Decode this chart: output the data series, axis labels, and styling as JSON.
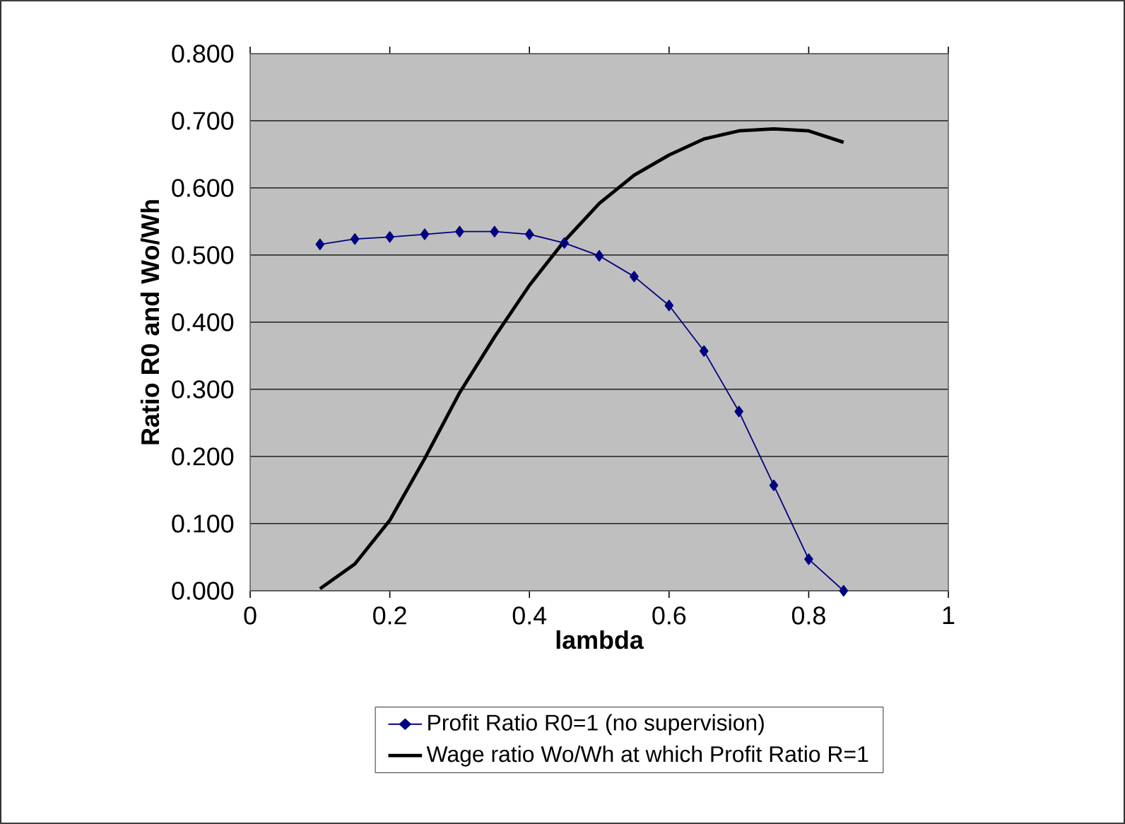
{
  "chart_data": {
    "type": "line",
    "xlabel": "lambda",
    "ylabel": "Ratio R0 and Wo/Wh",
    "x": [
      0.1,
      0.15,
      0.2,
      0.25,
      0.3,
      0.35,
      0.4,
      0.45,
      0.5,
      0.55,
      0.6,
      0.65,
      0.7,
      0.75,
      0.8,
      0.85
    ],
    "series": [
      {
        "name": "Profit Ratio R0=1 (no supervision)",
        "color": "#000080",
        "marker": "diamond",
        "values": [
          0.516,
          0.524,
          0.527,
          0.531,
          0.535,
          0.535,
          0.531,
          0.518,
          0.499,
          0.468,
          0.425,
          0.357,
          0.267,
          0.157,
          0.047,
          0.0
        ]
      },
      {
        "name": "Wage ratio Wo/Wh at which Profit Ratio R=1",
        "color": "#000000",
        "marker": "none",
        "values": [
          0.003,
          0.04,
          0.105,
          0.197,
          0.295,
          0.378,
          0.455,
          0.521,
          0.577,
          0.619,
          0.649,
          0.673,
          0.685,
          0.688,
          0.685,
          0.668
        ]
      }
    ],
    "xlim": [
      0,
      1
    ],
    "xticks": [
      0,
      0.2,
      0.4,
      0.6,
      0.8,
      1
    ],
    "ylim": [
      0,
      0.8
    ],
    "yticks": [
      {
        "value": 0,
        "label": "0.000"
      },
      {
        "value": 0.1,
        "label": "0.100"
      },
      {
        "value": 0.2,
        "label": "0.200"
      },
      {
        "value": 0.3,
        "label": "0.300"
      },
      {
        "value": 0.4,
        "label": "0.400"
      },
      {
        "value": 0.5,
        "label": "0.500"
      },
      {
        "value": 0.6,
        "label": "0.600"
      },
      {
        "value": 0.7,
        "label": "0.700"
      },
      {
        "value": 0.8,
        "label": "0.800"
      }
    ],
    "grid": "y",
    "legend": "bottom"
  }
}
